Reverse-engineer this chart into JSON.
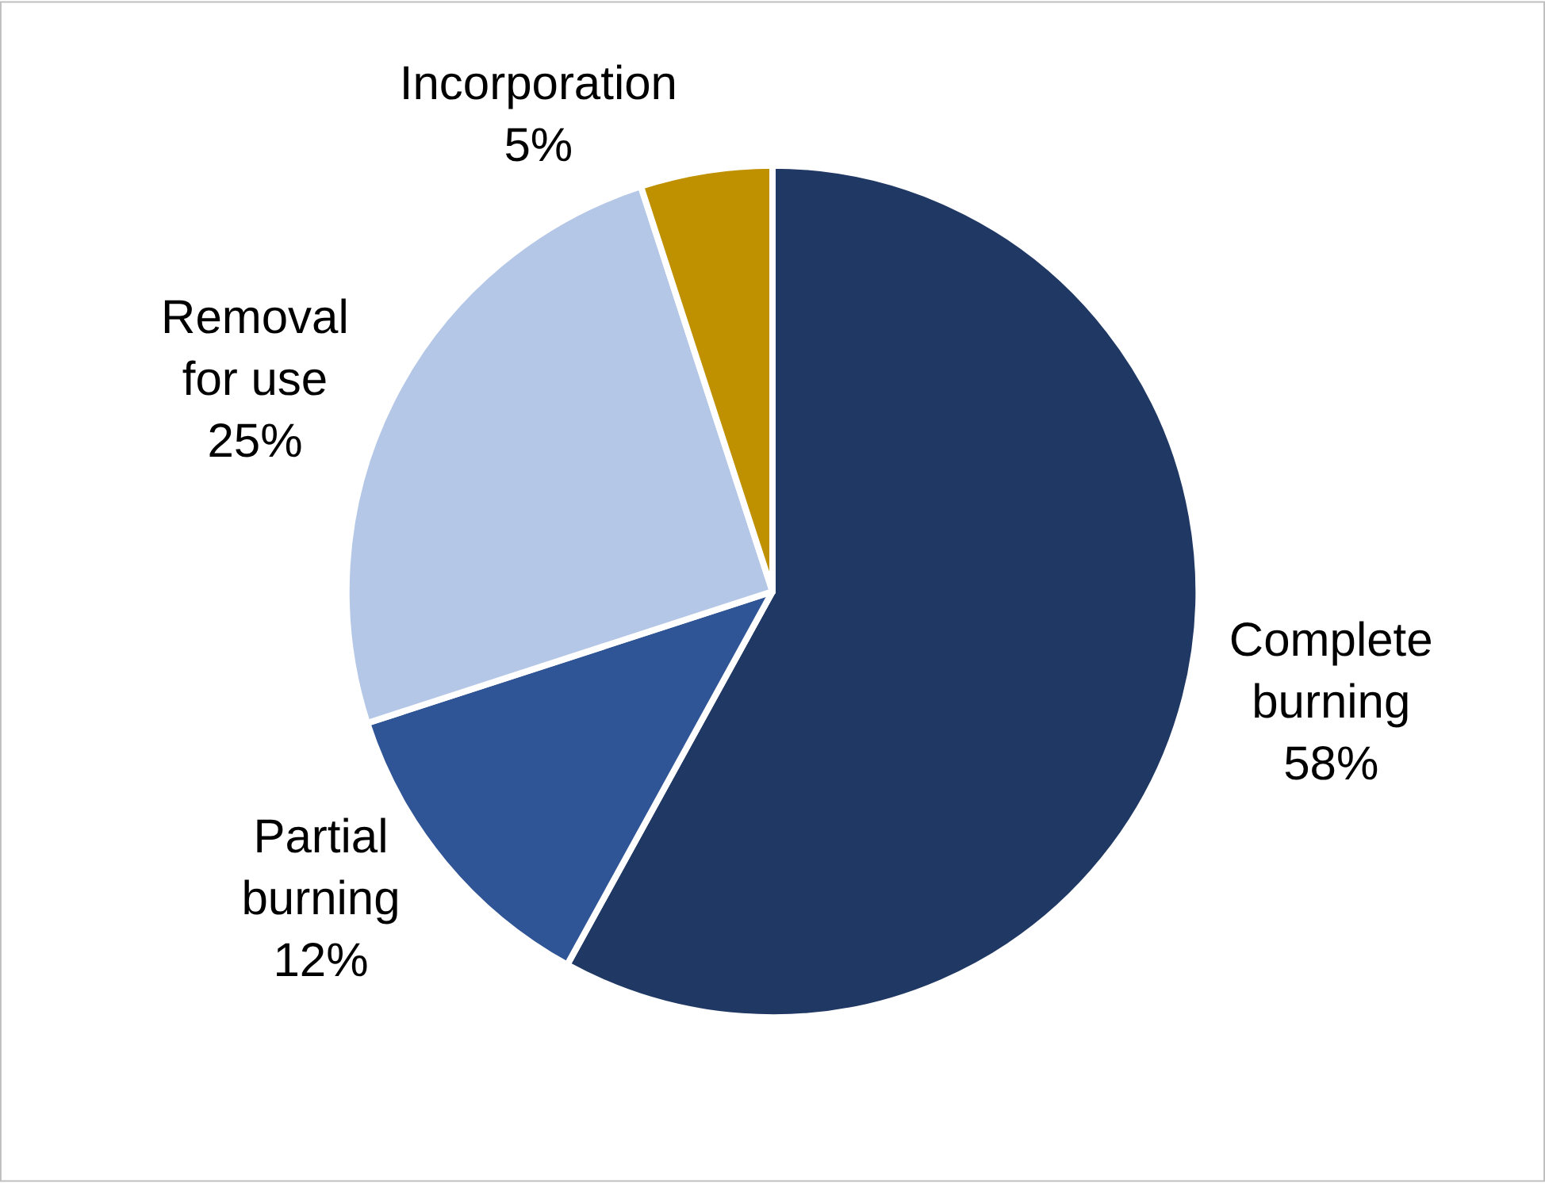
{
  "chart_data": {
    "type": "pie",
    "categories": [
      "Complete burning",
      "Partial burning",
      "Removal for use",
      "Incorporation"
    ],
    "values": [
      58,
      12,
      25,
      5
    ],
    "colors": [
      "#203864",
      "#2f5597",
      "#b4c7e7",
      "#bf9000"
    ],
    "value_labels": [
      "58%",
      "12%",
      "25%",
      "5%"
    ],
    "legend": false
  }
}
